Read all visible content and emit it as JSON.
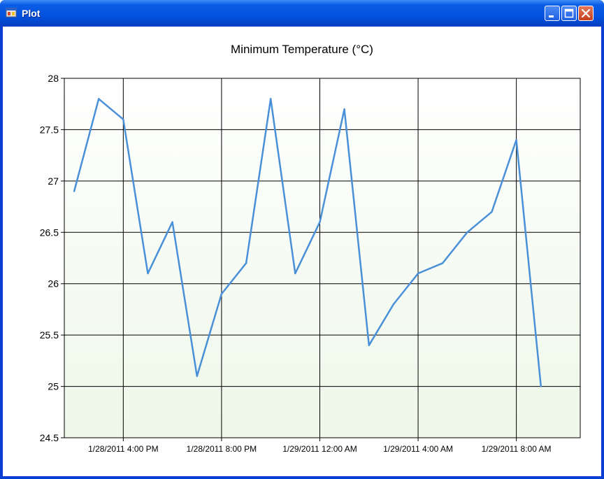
{
  "window": {
    "title": "Plot",
    "icon": "app-window-icon",
    "controls": [
      "minimize-icon",
      "maximize-icon",
      "close-icon"
    ]
  },
  "chart_data": {
    "type": "line",
    "title": "Minimum Temperature (°C)",
    "xlabel": "",
    "ylabel": "",
    "ylim": [
      24.5,
      28
    ],
    "y_ticks": [
      "24.5",
      "25",
      "25.5",
      "26",
      "26.5",
      "27",
      "27.5",
      "28"
    ],
    "x_tick_labels": [
      "1/28/2011 4:00 PM",
      "1/28/2011 8:00 PM",
      "1/29/2011 12:00 AM",
      "1/29/2011 4:00 AM",
      "1/29/2011 8:00 AM"
    ],
    "x_ticks_hours": [
      16,
      20,
      24,
      28,
      32
    ],
    "xlim_hours": [
      13.6,
      34.6
    ],
    "grid": true,
    "line_color": "#4a90d9",
    "x_hours": [
      14.0,
      15.0,
      16.0,
      17.0,
      18.0,
      19.0,
      20.0,
      21.0,
      22.0,
      23.0,
      24.0,
      25.0,
      26.0,
      27.0,
      28.0,
      29.0,
      30.0,
      31.0,
      32.0,
      33.0
    ],
    "series": [
      {
        "values": [
          26.9,
          27.8,
          27.6,
          26.1,
          26.6,
          25.1,
          25.9,
          26.2,
          27.8,
          26.1,
          26.6,
          27.7,
          25.4,
          25.8,
          26.1,
          26.2,
          26.5,
          26.7,
          27.4,
          25.0
        ]
      }
    ]
  }
}
